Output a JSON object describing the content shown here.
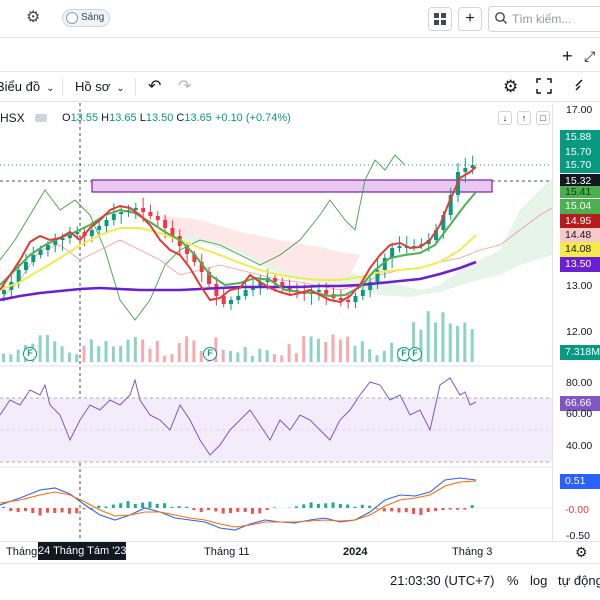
{
  "topbar": {
    "toggle_label": "Sáng",
    "search_placeholder": "Tìm kiếm..."
  },
  "toolbar": {
    "chart_type_label": "Biểu đồ",
    "profile_label": "Hồ sơ"
  },
  "legend": {
    "symbol": "HSX",
    "open_label": "O",
    "open": "13.55",
    "high_label": "H",
    "high": "13.65",
    "low_label": "L",
    "low": "13.50",
    "close_label": "C",
    "close": "13.65",
    "change": "+0.10 (+0.74%)"
  },
  "price_axis": {
    "ticks": [
      "17.00",
      "13.00",
      "12.00"
    ]
  },
  "price_labels": [
    {
      "value": "15.88",
      "color": "#089981"
    },
    {
      "value": "15.70",
      "color": "#089981"
    },
    {
      "value": "15.70",
      "color": "#089981"
    },
    {
      "value": "15.32",
      "color": "#131722"
    },
    {
      "value": "15.41",
      "color": "#4caf50"
    },
    {
      "value": "15.04",
      "color": "#4caf50"
    },
    {
      "value": "14.95",
      "color": "#b71c1c"
    },
    {
      "value": "14.48",
      "color": "#f7c9c9"
    },
    {
      "value": "14.08",
      "color": "#f5e94c"
    },
    {
      "value": "13.50",
      "color": "#6a1fd0"
    }
  ],
  "volume_label": "7.318M",
  "rsi": {
    "ticks": [
      "80.00",
      "60.00",
      "40.00"
    ],
    "value": "66.66"
  },
  "macd": {
    "value1": "0.51",
    "value2": "-0.00",
    "tick": "-0.50"
  },
  "xaxis": {
    "labels": [
      "Tháng",
      "Tháng 11",
      "2024",
      "Tháng 3"
    ],
    "crosshair_label": "24 Tháng Tám '23"
  },
  "event_badge": "F",
  "bottombar": {
    "time": "21:03:30 (UTC+7)",
    "percent": "%",
    "log": "log",
    "auto": "tự động"
  },
  "colors": {
    "up": "#089981",
    "down": "#f23645",
    "accent": "#2962ff"
  }
}
